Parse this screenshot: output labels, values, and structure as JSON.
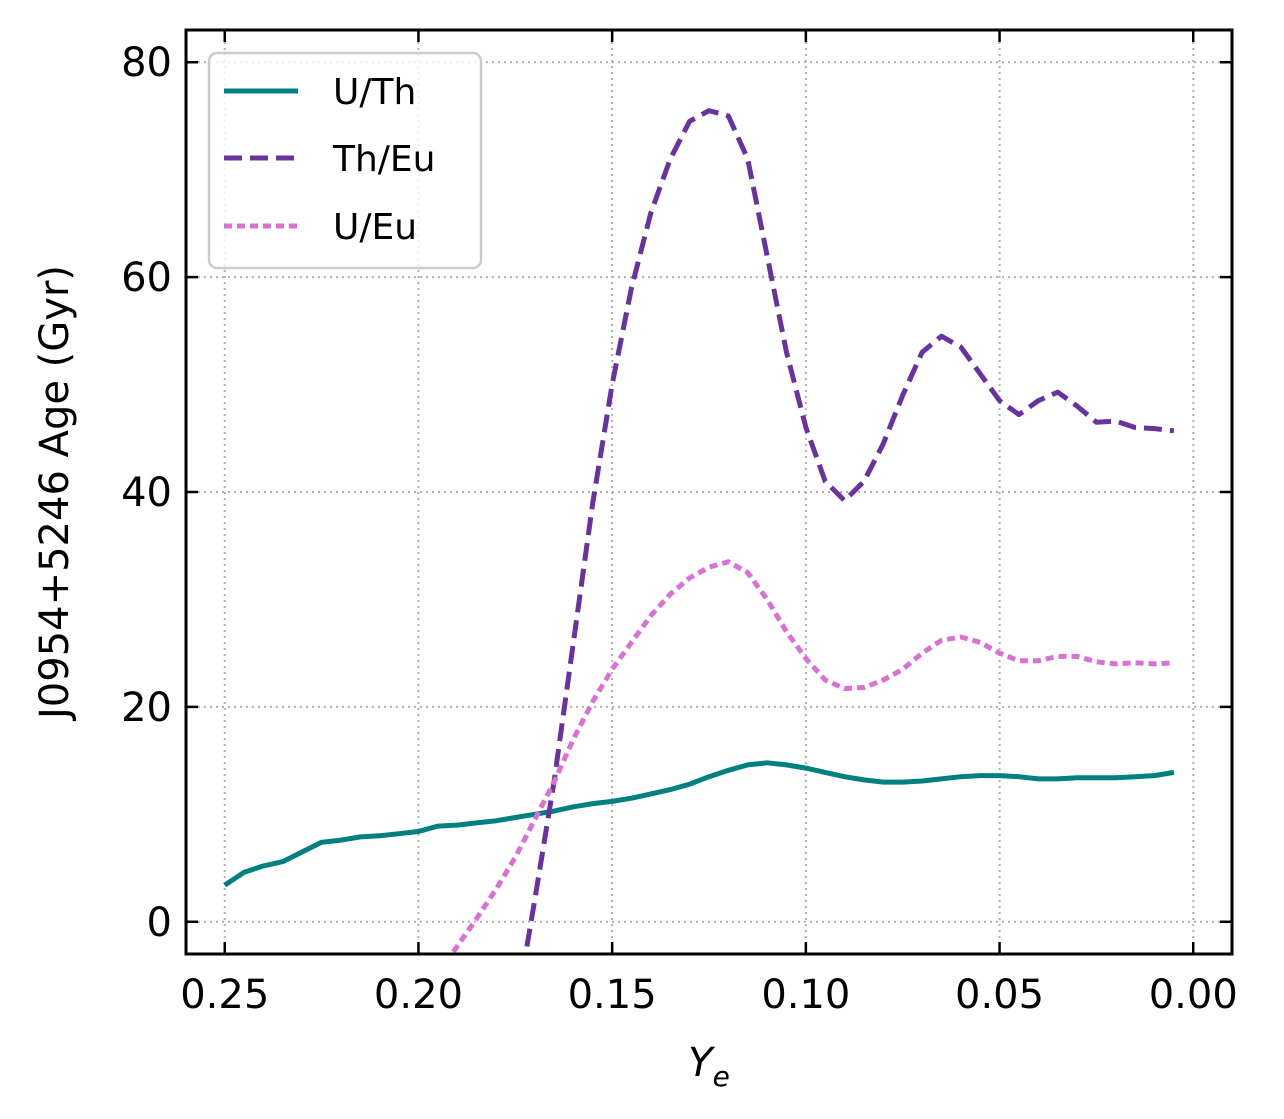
{
  "chart_data": {
    "type": "line",
    "xlabel": "Y",
    "xlabel_sub": "e",
    "ylabel": "J0954+5246 Age (Gyr)",
    "xlim": [
      0.26,
      -0.01
    ],
    "ylim": [
      -3,
      83
    ],
    "x_reversed": true,
    "grid": true,
    "legend_position": "top-left",
    "xticks": [
      {
        "value": 0.25,
        "label": "0.25"
      },
      {
        "value": 0.2,
        "label": "0.20"
      },
      {
        "value": 0.15,
        "label": "0.15"
      },
      {
        "value": 0.1,
        "label": "0.10"
      },
      {
        "value": 0.05,
        "label": "0.05"
      },
      {
        "value": 0.0,
        "label": "0.00"
      }
    ],
    "yticks": [
      {
        "value": 0,
        "label": "0"
      },
      {
        "value": 20,
        "label": "20"
      },
      {
        "value": 40,
        "label": "40"
      },
      {
        "value": 60,
        "label": "60"
      },
      {
        "value": 80,
        "label": "80"
      }
    ],
    "series": [
      {
        "name": "U/Th",
        "color": "#008080",
        "style": "solid",
        "x": [
          0.25,
          0.245,
          0.24,
          0.235,
          0.23,
          0.225,
          0.22,
          0.215,
          0.21,
          0.205,
          0.2,
          0.195,
          0.19,
          0.185,
          0.18,
          0.175,
          0.17,
          0.165,
          0.16,
          0.155,
          0.15,
          0.145,
          0.14,
          0.135,
          0.13,
          0.125,
          0.12,
          0.115,
          0.11,
          0.105,
          0.1,
          0.095,
          0.09,
          0.085,
          0.08,
          0.075,
          0.07,
          0.065,
          0.06,
          0.055,
          0.05,
          0.045,
          0.04,
          0.035,
          0.03,
          0.025,
          0.02,
          0.015,
          0.01,
          0.005
        ],
        "y": [
          3.4,
          4.6,
          5.2,
          5.6,
          6.5,
          7.4,
          7.6,
          7.9,
          8.0,
          8.2,
          8.4,
          8.9,
          9.0,
          9.2,
          9.4,
          9.7,
          10.0,
          10.3,
          10.7,
          11.0,
          11.2,
          11.5,
          11.9,
          12.3,
          12.8,
          13.5,
          14.1,
          14.6,
          14.8,
          14.6,
          14.3,
          13.9,
          13.5,
          13.2,
          13.0,
          13.0,
          13.1,
          13.3,
          13.5,
          13.6,
          13.6,
          13.5,
          13.3,
          13.3,
          13.4,
          13.4,
          13.4,
          13.5,
          13.6,
          13.9
        ]
      },
      {
        "name": "Th/Eu",
        "color": "#6a329f",
        "style": "dashed",
        "x": [
          0.172,
          0.17,
          0.165,
          0.16,
          0.155,
          0.15,
          0.145,
          0.14,
          0.135,
          0.13,
          0.125,
          0.12,
          0.115,
          0.11,
          0.105,
          0.1,
          0.095,
          0.09,
          0.085,
          0.08,
          0.075,
          0.07,
          0.065,
          0.06,
          0.055,
          0.05,
          0.045,
          0.04,
          0.035,
          0.03,
          0.025,
          0.02,
          0.015,
          0.01,
          0.005
        ],
        "y": [
          -2.3,
          2,
          13,
          26,
          39,
          50,
          59,
          66,
          71,
          74.5,
          75.5,
          75,
          71,
          62,
          53,
          46,
          41,
          39.2,
          41,
          44.5,
          49,
          53,
          54.5,
          53.5,
          51,
          48.5,
          47.2,
          48.5,
          49.3,
          48,
          46.5,
          46.6,
          46,
          45.9,
          45.7
        ]
      },
      {
        "name": "U/Eu",
        "color": "#da70d6",
        "style": "dotted",
        "x": [
          0.191,
          0.185,
          0.18,
          0.175,
          0.17,
          0.165,
          0.16,
          0.155,
          0.15,
          0.145,
          0.14,
          0.135,
          0.13,
          0.125,
          0.12,
          0.115,
          0.11,
          0.105,
          0.1,
          0.095,
          0.09,
          0.085,
          0.08,
          0.075,
          0.07,
          0.065,
          0.06,
          0.055,
          0.05,
          0.045,
          0.04,
          0.035,
          0.03,
          0.025,
          0.02,
          0.015,
          0.01,
          0.005
        ],
        "y": [
          -2.8,
          0.3,
          3,
          6,
          9.5,
          13,
          17,
          20.5,
          23.5,
          26,
          28.5,
          30.5,
          32,
          33,
          33.5,
          32.5,
          30,
          27,
          24.5,
          22.5,
          21.7,
          21.8,
          22.5,
          23.5,
          25,
          26.2,
          26.5,
          26,
          25,
          24.3,
          24.3,
          24.7,
          24.7,
          24.2,
          24.0,
          24.1,
          24.0,
          24.1
        ]
      }
    ]
  }
}
